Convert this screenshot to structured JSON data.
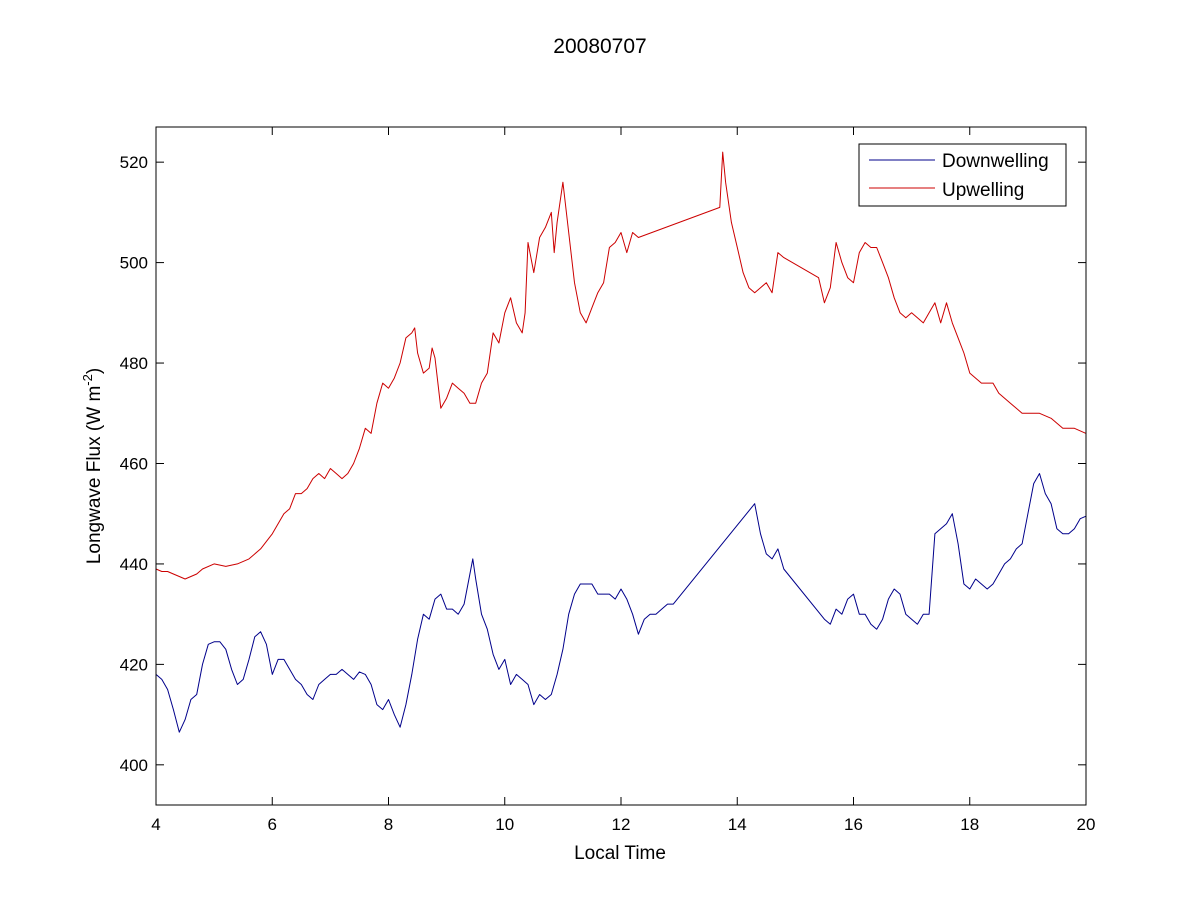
{
  "chart_data": {
    "type": "line",
    "title": "20080707",
    "xlabel": "Local Time",
    "ylabel_main": "Longwave Flux (W m",
    "ylabel_sup": "-2",
    "ylabel_close": ")",
    "xlim": [
      4,
      20
    ],
    "ylim": [
      392,
      527
    ],
    "xticks": [
      4,
      6,
      8,
      10,
      12,
      14,
      16,
      18,
      20
    ],
    "yticks": [
      400,
      420,
      440,
      460,
      480,
      500,
      520
    ],
    "grid": false,
    "legend_position": "top-right",
    "series": [
      {
        "name": "Downwelling",
        "color": "#00008b",
        "points": [
          [
            4.0,
            418
          ],
          [
            4.1,
            417
          ],
          [
            4.2,
            415
          ],
          [
            4.3,
            411
          ],
          [
            4.4,
            406.5
          ],
          [
            4.5,
            409
          ],
          [
            4.6,
            413
          ],
          [
            4.7,
            414
          ],
          [
            4.8,
            420
          ],
          [
            4.9,
            424
          ],
          [
            5.0,
            424.5
          ],
          [
            5.1,
            424.5
          ],
          [
            5.2,
            423
          ],
          [
            5.3,
            419
          ],
          [
            5.4,
            416
          ],
          [
            5.5,
            417
          ],
          [
            5.6,
            421
          ],
          [
            5.7,
            425.5
          ],
          [
            5.8,
            426.5
          ],
          [
            5.9,
            424
          ],
          [
            6.0,
            418
          ],
          [
            6.1,
            421
          ],
          [
            6.2,
            421
          ],
          [
            6.3,
            419
          ],
          [
            6.4,
            417
          ],
          [
            6.5,
            416
          ],
          [
            6.6,
            414
          ],
          [
            6.7,
            413
          ],
          [
            6.8,
            416
          ],
          [
            6.9,
            417
          ],
          [
            7.0,
            418
          ],
          [
            7.1,
            418
          ],
          [
            7.2,
            419
          ],
          [
            7.3,
            418
          ],
          [
            7.4,
            417
          ],
          [
            7.5,
            418.5
          ],
          [
            7.6,
            418
          ],
          [
            7.7,
            416
          ],
          [
            7.8,
            412
          ],
          [
            7.9,
            411
          ],
          [
            8.0,
            413
          ],
          [
            8.1,
            410
          ],
          [
            8.2,
            407.5
          ],
          [
            8.3,
            412
          ],
          [
            8.4,
            418
          ],
          [
            8.5,
            425
          ],
          [
            8.6,
            430
          ],
          [
            8.7,
            429
          ],
          [
            8.8,
            433
          ],
          [
            8.9,
            434
          ],
          [
            9.0,
            431
          ],
          [
            9.1,
            431
          ],
          [
            9.2,
            430
          ],
          [
            9.3,
            432
          ],
          [
            9.4,
            438
          ],
          [
            9.45,
            441
          ],
          [
            9.5,
            437
          ],
          [
            9.6,
            430
          ],
          [
            9.7,
            427
          ],
          [
            9.8,
            422
          ],
          [
            9.9,
            419
          ],
          [
            10.0,
            421
          ],
          [
            10.1,
            416
          ],
          [
            10.2,
            418
          ],
          [
            10.3,
            417
          ],
          [
            10.4,
            416
          ],
          [
            10.5,
            412
          ],
          [
            10.6,
            414
          ],
          [
            10.7,
            413
          ],
          [
            10.8,
            414
          ],
          [
            10.9,
            418
          ],
          [
            11.0,
            423
          ],
          [
            11.1,
            430
          ],
          [
            11.2,
            434
          ],
          [
            11.3,
            436
          ],
          [
            11.4,
            436
          ],
          [
            11.5,
            436
          ],
          [
            11.6,
            434
          ],
          [
            11.7,
            434
          ],
          [
            11.8,
            434
          ],
          [
            11.9,
            433
          ],
          [
            12.0,
            435
          ],
          [
            12.1,
            433
          ],
          [
            12.2,
            430
          ],
          [
            12.3,
            426
          ],
          [
            12.4,
            429
          ],
          [
            12.5,
            430
          ],
          [
            12.6,
            430
          ],
          [
            12.7,
            431
          ],
          [
            12.8,
            432
          ],
          [
            12.9,
            432
          ],
          [
            14.3,
            452
          ],
          [
            14.4,
            446
          ],
          [
            14.5,
            442
          ],
          [
            14.6,
            441
          ],
          [
            14.7,
            443
          ],
          [
            14.8,
            439
          ],
          [
            15.5,
            429
          ],
          [
            15.6,
            428
          ],
          [
            15.7,
            431
          ],
          [
            15.8,
            430
          ],
          [
            15.9,
            433
          ],
          [
            16.0,
            434
          ],
          [
            16.1,
            430
          ],
          [
            16.2,
            430
          ],
          [
            16.3,
            428
          ],
          [
            16.4,
            427
          ],
          [
            16.5,
            429
          ],
          [
            16.6,
            433
          ],
          [
            16.7,
            435
          ],
          [
            16.8,
            434
          ],
          [
            16.9,
            430
          ],
          [
            17.0,
            429
          ],
          [
            17.1,
            428
          ],
          [
            17.2,
            430
          ],
          [
            17.3,
            430
          ],
          [
            17.4,
            446
          ],
          [
            17.5,
            447
          ],
          [
            17.6,
            448
          ],
          [
            17.7,
            450
          ],
          [
            17.8,
            444
          ],
          [
            17.9,
            436
          ],
          [
            18.0,
            435
          ],
          [
            18.1,
            437
          ],
          [
            18.2,
            436
          ],
          [
            18.3,
            435
          ],
          [
            18.4,
            436
          ],
          [
            18.5,
            438
          ],
          [
            18.6,
            440
          ],
          [
            18.7,
            441
          ],
          [
            18.8,
            443
          ],
          [
            18.9,
            444
          ],
          [
            19.0,
            450
          ],
          [
            19.1,
            456
          ],
          [
            19.2,
            458
          ],
          [
            19.3,
            454
          ],
          [
            19.4,
            452
          ],
          [
            19.5,
            447
          ],
          [
            19.6,
            446
          ],
          [
            19.7,
            446
          ],
          [
            19.8,
            447
          ],
          [
            19.9,
            449
          ],
          [
            20.0,
            449.5
          ]
        ]
      },
      {
        "name": "Upwelling",
        "color": "#cc0000",
        "points": [
          [
            4.0,
            439
          ],
          [
            4.1,
            438.5
          ],
          [
            4.2,
            438.5
          ],
          [
            4.3,
            438
          ],
          [
            4.4,
            437.5
          ],
          [
            4.5,
            437
          ],
          [
            4.6,
            437.5
          ],
          [
            4.7,
            438
          ],
          [
            4.8,
            439
          ],
          [
            5.0,
            440
          ],
          [
            5.2,
            439.5
          ],
          [
            5.4,
            440
          ],
          [
            5.6,
            441
          ],
          [
            5.8,
            443
          ],
          [
            6.0,
            446
          ],
          [
            6.2,
            450
          ],
          [
            6.3,
            451
          ],
          [
            6.4,
            454
          ],
          [
            6.5,
            454
          ],
          [
            6.6,
            455
          ],
          [
            6.7,
            457
          ],
          [
            6.8,
            458
          ],
          [
            6.9,
            457
          ],
          [
            7.0,
            459
          ],
          [
            7.1,
            458
          ],
          [
            7.2,
            457
          ],
          [
            7.3,
            458
          ],
          [
            7.4,
            460
          ],
          [
            7.5,
            463
          ],
          [
            7.6,
            467
          ],
          [
            7.7,
            466
          ],
          [
            7.8,
            472
          ],
          [
            7.9,
            476
          ],
          [
            8.0,
            475
          ],
          [
            8.1,
            477
          ],
          [
            8.2,
            480
          ],
          [
            8.3,
            485
          ],
          [
            8.4,
            486
          ],
          [
            8.45,
            487
          ],
          [
            8.5,
            482
          ],
          [
            8.6,
            478
          ],
          [
            8.7,
            479
          ],
          [
            8.75,
            483
          ],
          [
            8.8,
            481
          ],
          [
            8.9,
            471
          ],
          [
            9.0,
            473
          ],
          [
            9.1,
            476
          ],
          [
            9.2,
            475
          ],
          [
            9.3,
            474
          ],
          [
            9.4,
            472
          ],
          [
            9.5,
            472
          ],
          [
            9.6,
            476
          ],
          [
            9.7,
            478
          ],
          [
            9.8,
            486
          ],
          [
            9.9,
            484
          ],
          [
            10.0,
            490
          ],
          [
            10.1,
            493
          ],
          [
            10.2,
            488
          ],
          [
            10.3,
            486
          ],
          [
            10.35,
            490
          ],
          [
            10.4,
            504
          ],
          [
            10.5,
            498
          ],
          [
            10.6,
            505
          ],
          [
            10.7,
            507
          ],
          [
            10.8,
            510
          ],
          [
            10.85,
            502
          ],
          [
            10.9,
            508
          ],
          [
            11.0,
            516
          ],
          [
            11.1,
            506
          ],
          [
            11.2,
            496
          ],
          [
            11.3,
            490
          ],
          [
            11.4,
            488
          ],
          [
            11.5,
            491
          ],
          [
            11.6,
            494
          ],
          [
            11.7,
            496
          ],
          [
            11.8,
            503
          ],
          [
            11.9,
            504
          ],
          [
            12.0,
            506
          ],
          [
            12.1,
            502
          ],
          [
            12.2,
            506
          ],
          [
            12.3,
            505
          ],
          [
            13.7,
            511
          ],
          [
            13.75,
            522
          ],
          [
            13.8,
            516
          ],
          [
            13.9,
            508
          ],
          [
            14.0,
            503
          ],
          [
            14.1,
            498
          ],
          [
            14.2,
            495
          ],
          [
            14.3,
            494
          ],
          [
            14.4,
            495
          ],
          [
            14.5,
            496
          ],
          [
            14.6,
            494
          ],
          [
            14.65,
            498
          ],
          [
            14.7,
            502
          ],
          [
            14.8,
            501
          ],
          [
            15.4,
            497
          ],
          [
            15.5,
            492
          ],
          [
            15.6,
            495
          ],
          [
            15.7,
            504
          ],
          [
            15.8,
            500
          ],
          [
            15.9,
            497
          ],
          [
            16.0,
            496
          ],
          [
            16.1,
            502
          ],
          [
            16.2,
            504
          ],
          [
            16.3,
            503
          ],
          [
            16.4,
            503
          ],
          [
            16.5,
            500
          ],
          [
            16.6,
            497
          ],
          [
            16.7,
            493
          ],
          [
            16.8,
            490
          ],
          [
            16.9,
            489
          ],
          [
            17.0,
            490
          ],
          [
            17.1,
            489
          ],
          [
            17.2,
            488
          ],
          [
            17.3,
            490
          ],
          [
            17.4,
            492
          ],
          [
            17.5,
            488
          ],
          [
            17.6,
            492
          ],
          [
            17.7,
            488
          ],
          [
            17.8,
            485
          ],
          [
            17.9,
            482
          ],
          [
            18.0,
            478
          ],
          [
            18.1,
            477
          ],
          [
            18.2,
            476
          ],
          [
            18.3,
            476
          ],
          [
            18.4,
            476
          ],
          [
            18.5,
            474
          ],
          [
            18.6,
            473
          ],
          [
            18.7,
            472
          ],
          [
            18.8,
            471
          ],
          [
            18.9,
            470
          ],
          [
            19.0,
            470
          ],
          [
            19.2,
            470
          ],
          [
            19.4,
            469
          ],
          [
            19.6,
            467
          ],
          [
            19.8,
            467
          ],
          [
            20.0,
            466
          ]
        ]
      }
    ]
  }
}
